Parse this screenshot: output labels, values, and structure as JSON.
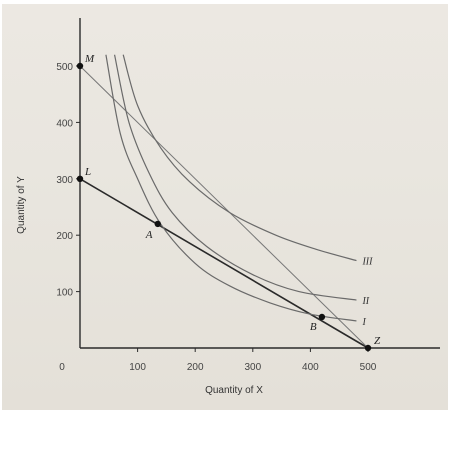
{
  "chart_data": {
    "type": "line",
    "title": "",
    "xlabel": "Quantity of X",
    "ylabel": "Quantity of Y",
    "xlim": [
      0,
      550
    ],
    "ylim": [
      0,
      550
    ],
    "x_ticks": [
      "100",
      "200",
      "300",
      "400",
      "500"
    ],
    "y_ticks": [
      "100",
      "200",
      "300",
      "400",
      "500"
    ],
    "origin_label": "0",
    "grid": false,
    "colors": {
      "axis": "#2b2b2b",
      "budget_line": "#2a2a2a",
      "budget_line_ml": "#777777",
      "curves": "#6a6a6a",
      "points": "#111111"
    },
    "budget_lines": [
      {
        "from": [
          0,
          300
        ],
        "to": [
          500,
          0
        ]
      },
      {
        "from": [
          0,
          500
        ],
        "to": [
          500,
          0
        ]
      }
    ],
    "indifference_curves": [
      {
        "name": "I",
        "points": [
          [
            45,
            520
          ],
          [
            70,
            380
          ],
          [
            100,
            300
          ],
          [
            140,
            220
          ],
          [
            200,
            150
          ],
          [
            260,
            110
          ],
          [
            330,
            80
          ],
          [
            400,
            60
          ],
          [
            480,
            48
          ]
        ]
      },
      {
        "name": "II",
        "points": [
          [
            60,
            520
          ],
          [
            85,
            400
          ],
          [
            120,
            310
          ],
          [
            160,
            240
          ],
          [
            220,
            180
          ],
          [
            300,
            130
          ],
          [
            380,
            100
          ],
          [
            480,
            85
          ]
        ]
      },
      {
        "name": "III",
        "points": [
          [
            75,
            520
          ],
          [
            100,
            430
          ],
          [
            140,
            355
          ],
          [
            190,
            295
          ],
          [
            260,
            240
          ],
          [
            340,
            200
          ],
          [
            410,
            175
          ],
          [
            480,
            155
          ]
        ]
      }
    ],
    "points": [
      {
        "label": "M",
        "x": 0,
        "y": 500
      },
      {
        "label": "L",
        "x": 0,
        "y": 300
      },
      {
        "label": "A",
        "x": 135,
        "y": 220
      },
      {
        "label": "B",
        "x": 420,
        "y": 55
      },
      {
        "label": "Z",
        "x": 500,
        "y": 0
      }
    ]
  }
}
